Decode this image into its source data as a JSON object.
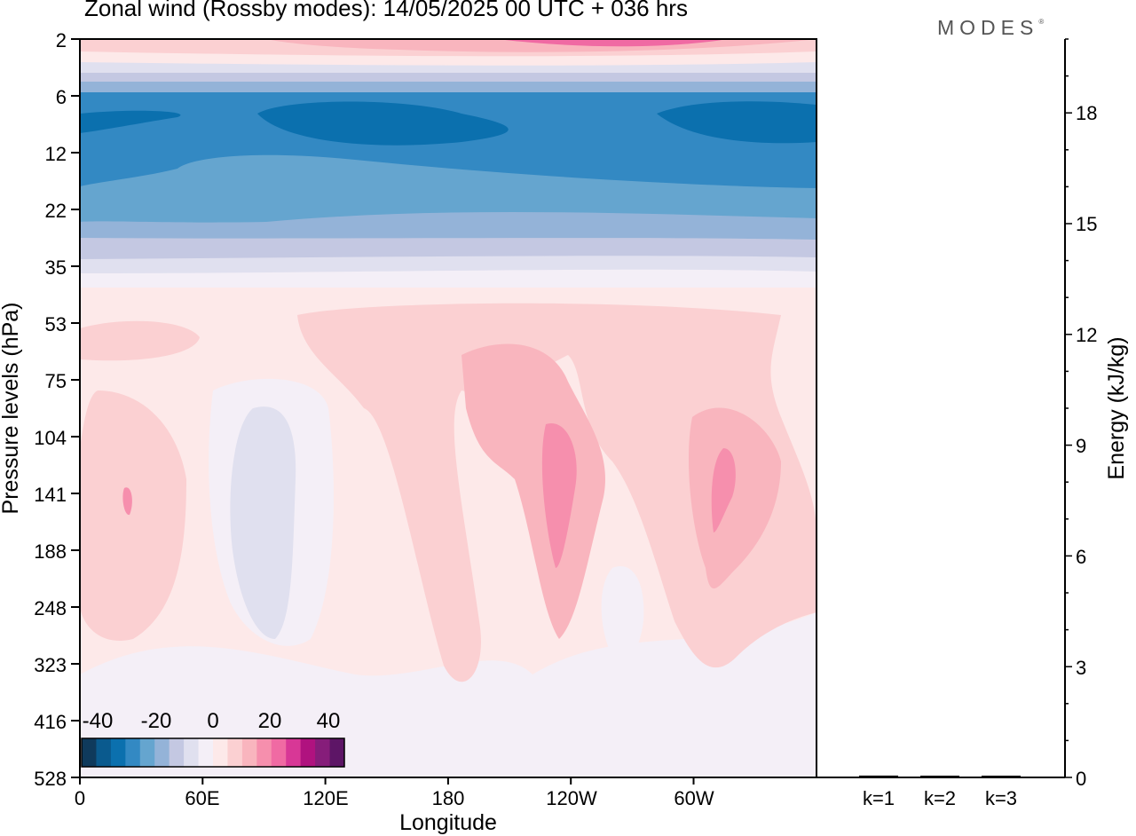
{
  "header": {
    "title": "Zonal wind (Rossby modes):  14/05/2025  00 UTC  + 036 hrs",
    "logo_text": "MODES",
    "logo_mark": "®"
  },
  "chart_data": [
    {
      "type": "heatmap",
      "xlabel": "Longitude",
      "ylabel": "Pressure levels (hPa)",
      "x_ticks": [
        "0",
        "60E",
        "120E",
        "180",
        "120W",
        "60W"
      ],
      "y_ticks": [
        "2",
        "6",
        "12",
        "22",
        "35",
        "53",
        "75",
        "104",
        "141",
        "188",
        "248",
        "323",
        "416",
        "528"
      ],
      "y_scale": "log",
      "colorbar": {
        "tick_labels": [
          "-40",
          "-20",
          "0",
          "20",
          "40"
        ],
        "colors": [
          "#0f3a5c",
          "#0a5a8e",
          "#0b70ae",
          "#3389c3",
          "#65a5cf",
          "#94b3d8",
          "#c4c8e2",
          "#e0e0ef",
          "#f4eff7",
          "#fde9e9",
          "#fbd0d2",
          "#f9b5be",
          "#f68fad",
          "#f06aa3",
          "#d83796",
          "#b0127f",
          "#861d7a",
          "#5d1566"
        ],
        "placement": "bottom-left"
      },
      "bands": [
        {
          "level": "2",
          "color": "#f9b5be"
        },
        {
          "level": "6",
          "color": "#3389c3"
        },
        {
          "level": "12",
          "color": "#65a5cf"
        },
        {
          "level": "22",
          "color": "#94b3d8"
        },
        {
          "level": "35",
          "color": "#e0e0ef"
        },
        {
          "level": "53",
          "color": "#fde9e9"
        },
        {
          "level": "528",
          "color": "#f4eff7"
        }
      ]
    },
    {
      "type": "bar",
      "categories": [
        "k=1",
        "k=2",
        "k=3"
      ],
      "values": [
        0.05,
        0.03,
        0.02
      ],
      "ylabel": "Energy (kJ/kg)",
      "y_ticks": [
        "0",
        "3",
        "6",
        "9",
        "12",
        "15",
        "18"
      ],
      "ylim": [
        0,
        20
      ]
    }
  ]
}
